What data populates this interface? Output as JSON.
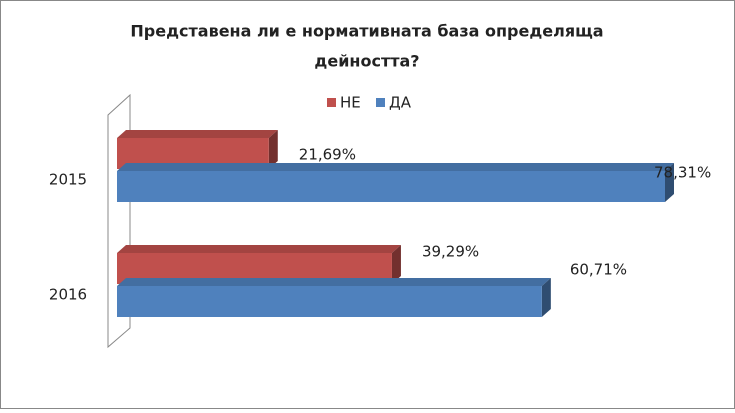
{
  "chart_data": {
    "type": "bar",
    "orientation": "horizontal",
    "title": [
      "Представена ли е нормативната база определяща",
      "дейността?"
    ],
    "categories": [
      "2015",
      "2016"
    ],
    "series": [
      {
        "name": "НЕ",
        "color": "#c0504d",
        "values": [
          21.69,
          39.29
        ],
        "value_labels": [
          "21,69%",
          "39,29%"
        ]
      },
      {
        "name": "ДА",
        "color": "#4f81bd",
        "values": [
          78.31,
          60.71
        ],
        "value_labels": [
          "78,31%",
          "60,71%"
        ]
      }
    ]
  }
}
